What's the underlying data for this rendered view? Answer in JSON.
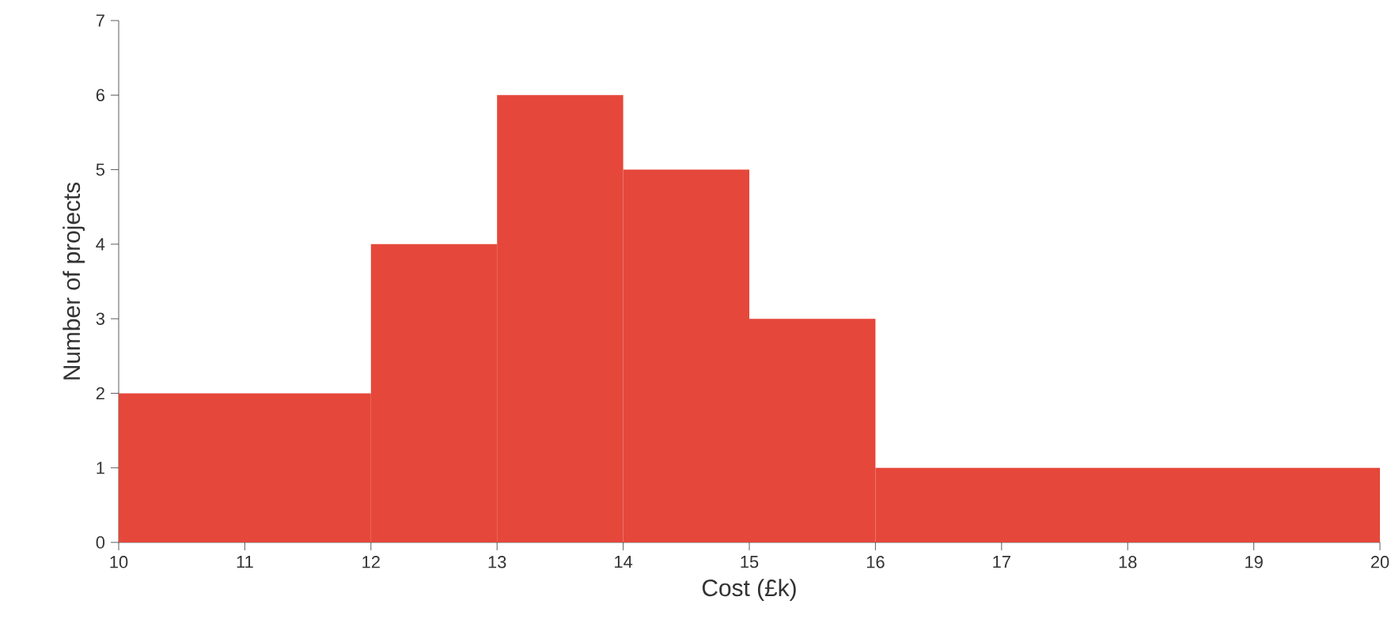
{
  "chart_data": {
    "type": "histogram",
    "xlabel": "Cost (£k)",
    "ylabel": "Number of projects",
    "bins": [
      10,
      12,
      13,
      14,
      15,
      16,
      20
    ],
    "values": [
      2,
      4,
      6,
      5,
      3,
      1
    ],
    "color": "#e5473a",
    "xlim": [
      10,
      20
    ],
    "ylim": [
      0,
      7
    ],
    "xticks": [
      10,
      11,
      12,
      13,
      14,
      15,
      16,
      17,
      18,
      19,
      20
    ],
    "yticks": [
      0,
      1,
      2,
      3,
      4,
      5,
      6,
      7
    ]
  }
}
